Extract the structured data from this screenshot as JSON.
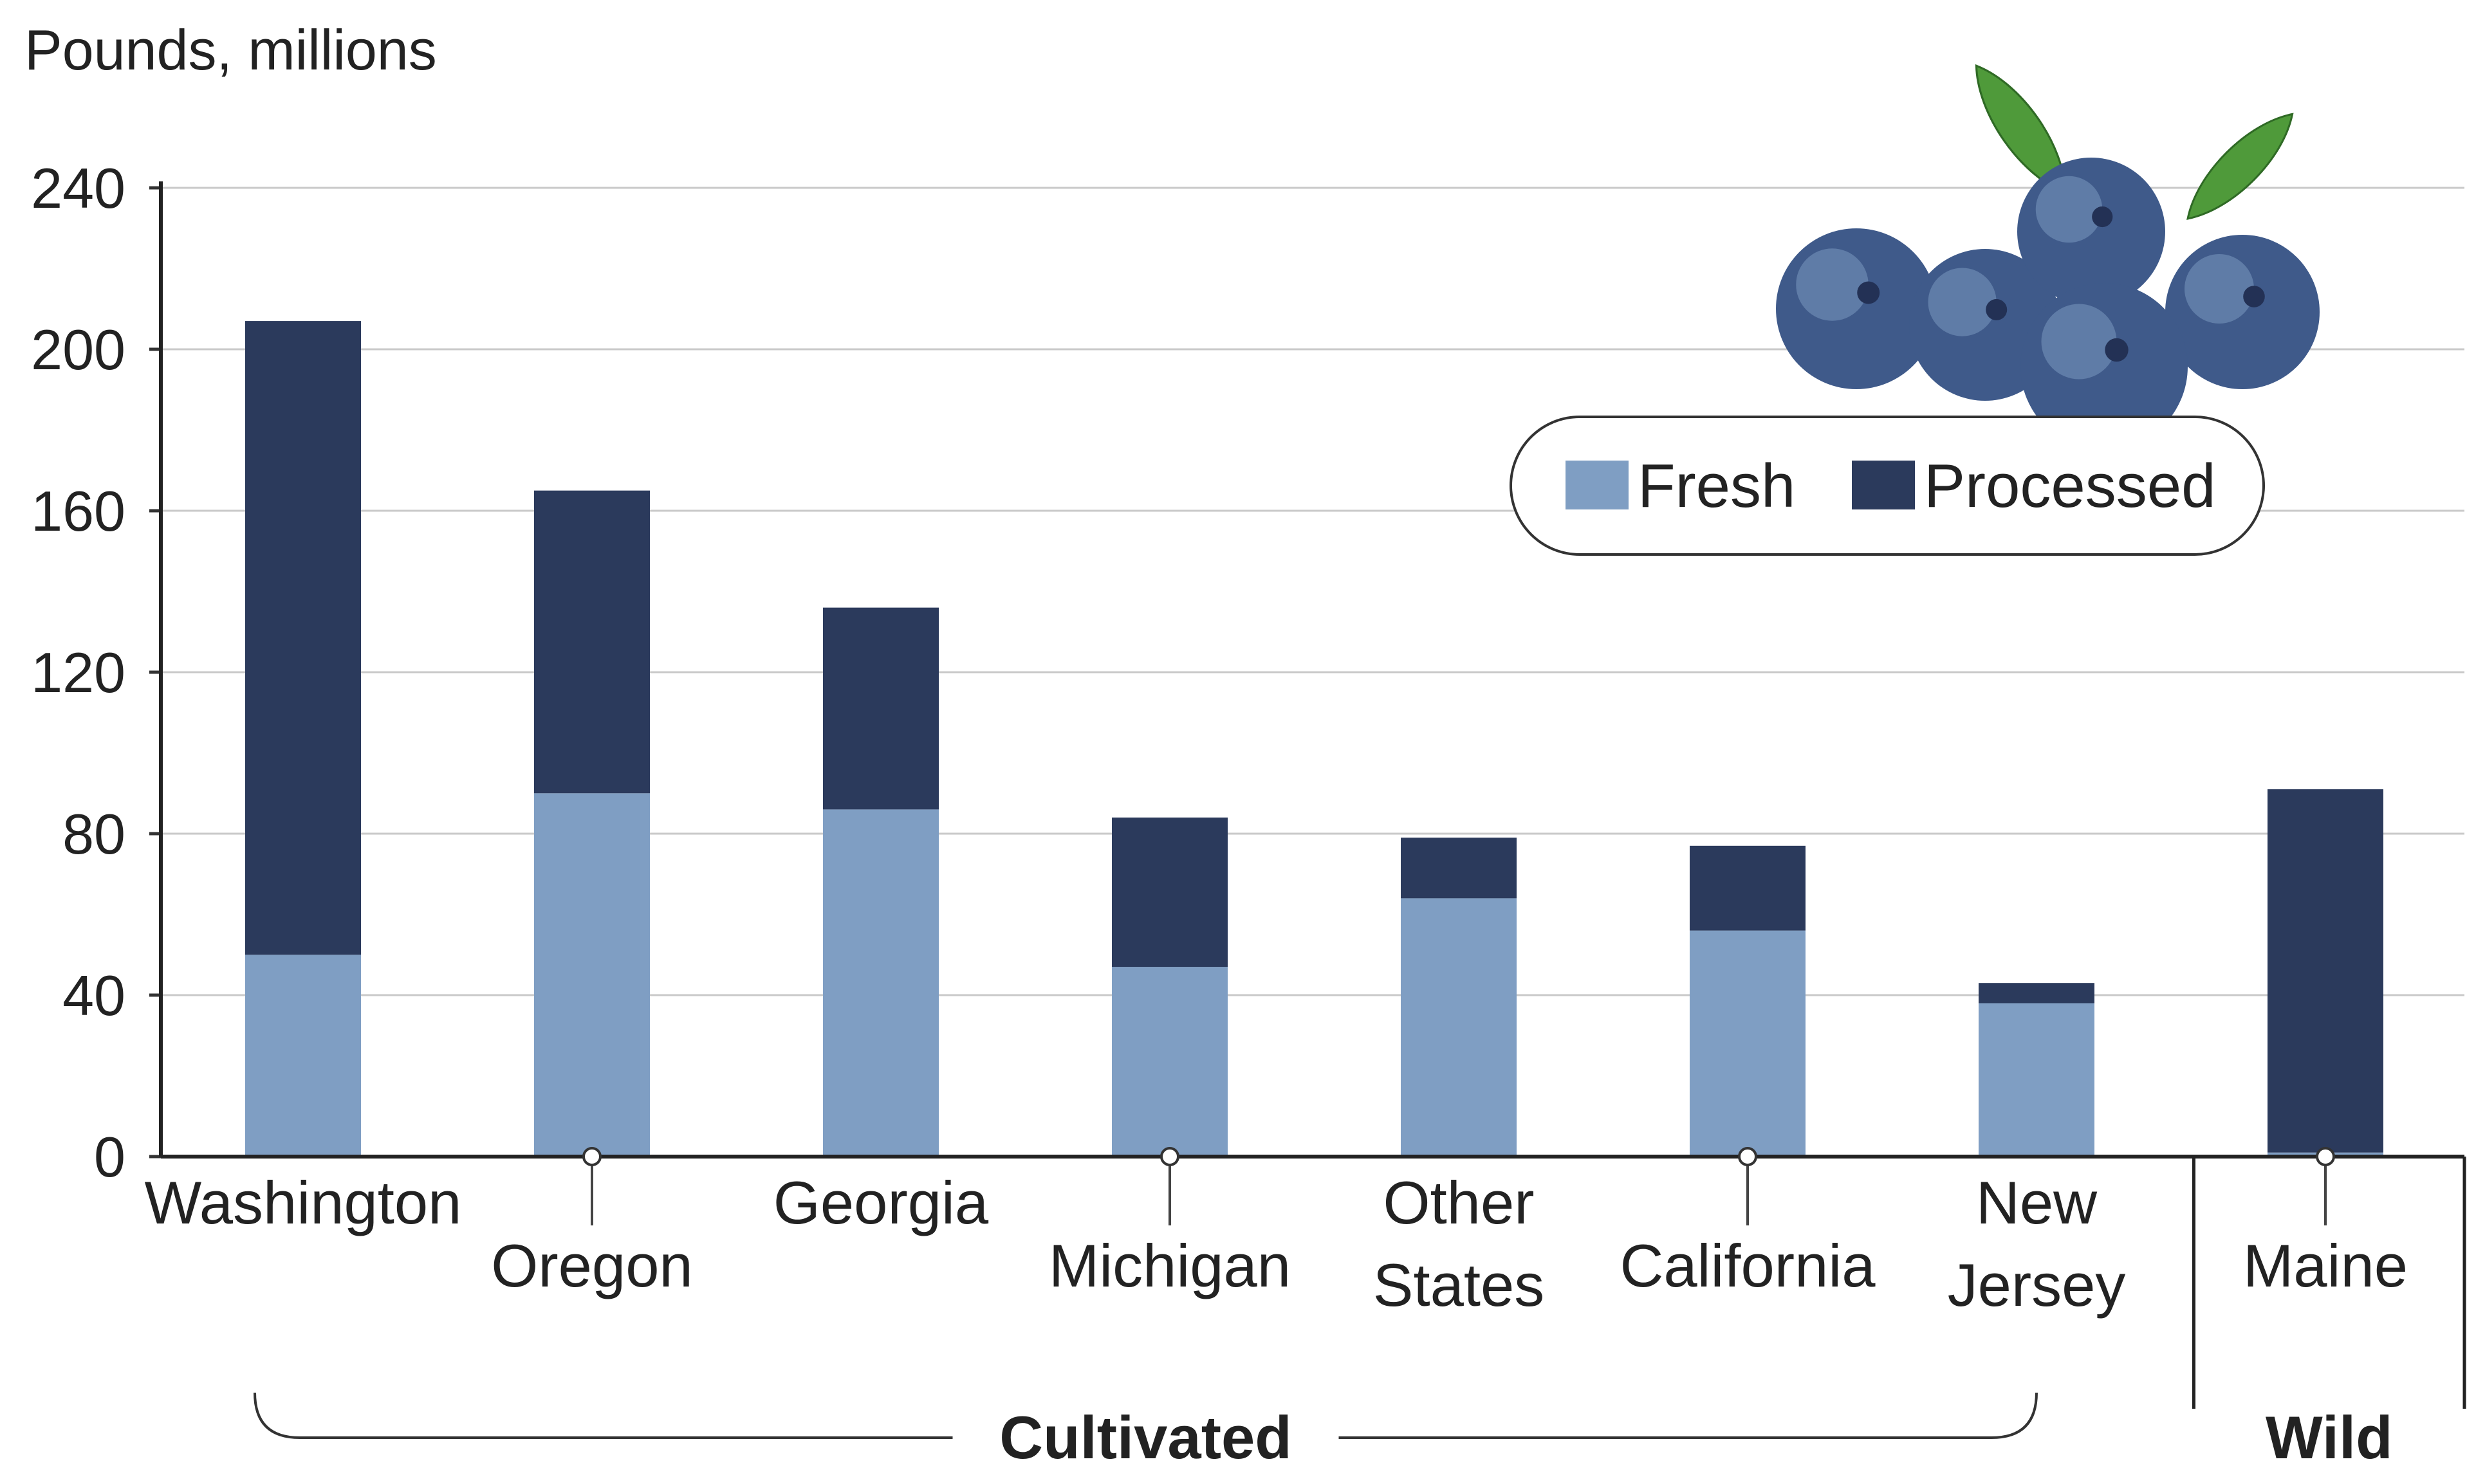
{
  "chart_data": {
    "type": "bar",
    "stacked": true,
    "unit_label": "Pounds, millions",
    "ylim": [
      0,
      240
    ],
    "yticks": [
      "0",
      "40",
      "80",
      "120",
      "160",
      "200",
      "240"
    ],
    "grid": true,
    "legend_position": "top-right",
    "categories": [
      "Washington",
      "Oregon",
      "Georgia",
      "Michigan",
      "Other States",
      "California",
      "New Jersey",
      "Maine"
    ],
    "category_lines": [
      [
        "Washington"
      ],
      [
        "Oregon"
      ],
      [
        "Georgia"
      ],
      [
        "Michigan"
      ],
      [
        "Other",
        "States"
      ],
      [
        "California"
      ],
      [
        "New",
        "Jersey"
      ],
      [
        "Maine"
      ]
    ],
    "series": [
      {
        "name": "Fresh",
        "color": "#7f9ec3",
        "values": [
          50,
          90,
          86,
          47,
          64,
          56,
          38,
          1
        ]
      },
      {
        "name": "Processed",
        "color": "#2b3a5c",
        "values": [
          157,
          75,
          50,
          37,
          15,
          21,
          5,
          90
        ]
      }
    ],
    "groups": [
      {
        "label": "Cultivated",
        "categories": [
          "Washington",
          "Oregon",
          "Georgia",
          "Michigan",
          "Other States",
          "California",
          "New Jersey"
        ]
      },
      {
        "label": "Wild",
        "categories": [
          "Maine"
        ]
      }
    ],
    "decoration": {
      "name": "blueberries-illustration-icon",
      "berry_color": "#3f5a8a",
      "leaf_color": "#4f9a3a"
    }
  }
}
